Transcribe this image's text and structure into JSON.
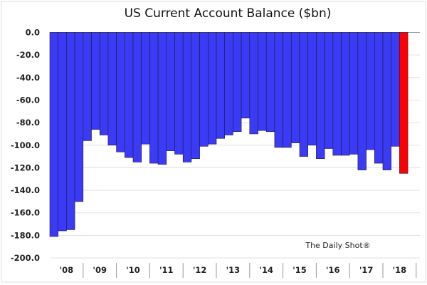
{
  "chart_data": {
    "type": "bar",
    "title": "US Current Account Balance ($bn)",
    "source_label": "The Daily Shot®",
    "xlabel": "",
    "ylabel": "",
    "ylim": [
      -200,
      0
    ],
    "yticks": [
      "0.0",
      "-20.0",
      "-40.0",
      "-60.0",
      "-80.0",
      "-100.0",
      "-120.0",
      "-140.0",
      "-160.0",
      "-180.0",
      "-200.0"
    ],
    "ytick_values": [
      0,
      -20,
      -40,
      -60,
      -80,
      -100,
      -120,
      -140,
      -160,
      -180,
      -200
    ],
    "year_labels": [
      "'08",
      "'09",
      "'10",
      "'11",
      "'12",
      "'13",
      "'14",
      "'15",
      "'16",
      "'17",
      "'18"
    ],
    "grid": true,
    "colors": {
      "bar": "#3b3bf5",
      "highlight": "#ff0000",
      "grid": "#e0e0e0"
    },
    "highlight_last": true,
    "values": [
      -181,
      -176,
      -175,
      -150,
      -96,
      -86,
      -91,
      -100,
      -106,
      -111,
      -115,
      -99,
      -116,
      -117,
      -105,
      -108,
      -115,
      -112,
      -101,
      -99,
      -94,
      -91,
      -88,
      -76,
      -90,
      -87,
      -88,
      -102,
      -102,
      -98,
      -110,
      -100,
      -112,
      -103,
      -109,
      -109,
      -108,
      -122,
      -104,
      -116,
      -122,
      -101,
      -125
    ]
  }
}
